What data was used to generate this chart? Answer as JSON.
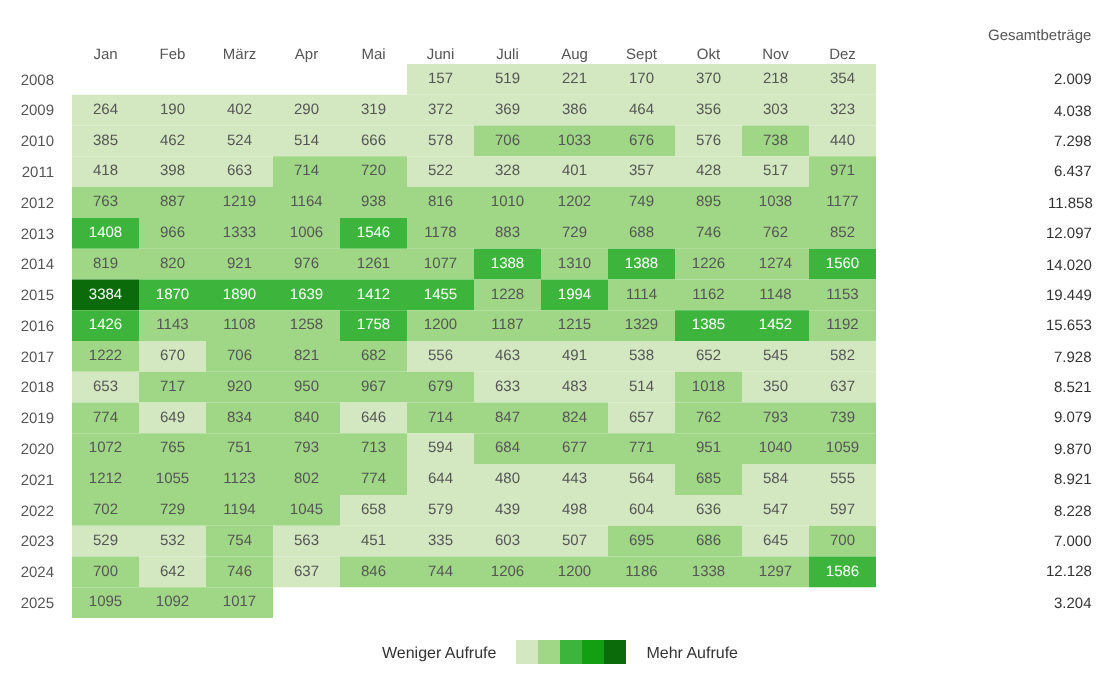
{
  "chart_data": {
    "type": "heatmap",
    "categories": [
      "Jan",
      "Feb",
      "März",
      "Apr",
      "Mai",
      "Juni",
      "Juli",
      "Aug",
      "Sept",
      "Okt",
      "Nov",
      "Dez"
    ],
    "y_categories": [
      "2008",
      "2009",
      "2010",
      "2011",
      "2012",
      "2013",
      "2014",
      "2015",
      "2016",
      "2017",
      "2018",
      "2019",
      "2020",
      "2021",
      "2022",
      "2023",
      "2024",
      "2025"
    ],
    "y2_categories": [
      "2.009",
      "4.038",
      "7.298",
      "6.437",
      "11.858",
      "12.097",
      "14.020",
      "19.449",
      "15.653",
      "7.928",
      "8.521",
      "9.079",
      "9.870",
      "8.921",
      "8.228",
      "7.000",
      "12.128",
      "3.204"
    ],
    "cells": [
      [
        null,
        null,
        null,
        null,
        null,
        157,
        519,
        221,
        170,
        370,
        218,
        354
      ],
      [
        264,
        190,
        402,
        290,
        319,
        372,
        369,
        386,
        464,
        356,
        303,
        323
      ],
      [
        385,
        462,
        524,
        514,
        666,
        578,
        706,
        1033,
        676,
        576,
        738,
        440
      ],
      [
        418,
        398,
        663,
        714,
        720,
        522,
        328,
        401,
        357,
        428,
        517,
        971
      ],
      [
        763,
        887,
        1219,
        1164,
        938,
        816,
        1010,
        1202,
        749,
        895,
        1038,
        1177
      ],
      [
        1408,
        966,
        1333,
        1006,
        1546,
        1178,
        883,
        729,
        688,
        746,
        762,
        852
      ],
      [
        819,
        820,
        921,
        976,
        1261,
        1077,
        1388,
        1310,
        1388,
        1226,
        1274,
        1560
      ],
      [
        3384,
        1870,
        1890,
        1639,
        1412,
        1455,
        1228,
        1994,
        1114,
        1162,
        1148,
        1153
      ],
      [
        1426,
        1143,
        1108,
        1258,
        1758,
        1200,
        1187,
        1215,
        1329,
        1385,
        1452,
        1192
      ],
      [
        1222,
        670,
        706,
        821,
        682,
        556,
        463,
        491,
        538,
        652,
        545,
        582
      ],
      [
        653,
        717,
        920,
        950,
        967,
        679,
        633,
        483,
        514,
        1018,
        350,
        637
      ],
      [
        774,
        649,
        834,
        840,
        646,
        714,
        847,
        824,
        657,
        762,
        793,
        739
      ],
      [
        1072,
        765,
        751,
        793,
        713,
        594,
        684,
        677,
        771,
        951,
        1040,
        1059
      ],
      [
        1212,
        1055,
        1123,
        802,
        774,
        644,
        480,
        443,
        564,
        685,
        584,
        555
      ],
      [
        702,
        729,
        1194,
        1045,
        658,
        579,
        439,
        498,
        604,
        636,
        547,
        597
      ],
      [
        529,
        532,
        754,
        563,
        451,
        335,
        603,
        507,
        695,
        686,
        645,
        700
      ],
      [
        700,
        642,
        746,
        637,
        846,
        744,
        1206,
        1200,
        1186,
        1338,
        1297,
        1586
      ],
      [
        1095,
        1092,
        1017,
        null,
        null,
        null,
        null,
        null,
        null,
        null,
        null,
        null
      ]
    ],
    "colors": [
      [
        null,
        null,
        null,
        null,
        null,
        "#d3e8c1",
        "#d3e8c1",
        "#d3e8c1",
        "#d3e8c1",
        "#d3e8c1",
        "#d3e8c1",
        "#d3e8c1"
      ],
      [
        "#d3e8c1",
        "#d3e8c1",
        "#d3e8c1",
        "#d3e8c1",
        "#d3e8c1",
        "#d3e8c1",
        "#d3e8c1",
        "#d3e8c1",
        "#d3e8c1",
        "#d3e8c1",
        "#d3e8c1",
        "#d3e8c1"
      ],
      [
        "#d3e8c1",
        "#d3e8c1",
        "#d3e8c1",
        "#d3e8c1",
        "#d3e8c1",
        "#d3e8c1",
        "#a0d786",
        "#a0d786",
        "#a0d786",
        "#d3e8c1",
        "#a0d786",
        "#d3e8c1"
      ],
      [
        "#d3e8c1",
        "#d3e8c1",
        "#d3e8c1",
        "#a0d786",
        "#a0d786",
        "#d3e8c1",
        "#d3e8c1",
        "#d3e8c1",
        "#d3e8c1",
        "#d3e8c1",
        "#d3e8c1",
        "#a0d786"
      ],
      [
        "#a0d786",
        "#a0d786",
        "#a0d786",
        "#a0d786",
        "#a0d786",
        "#a0d786",
        "#a0d786",
        "#a0d786",
        "#a0d786",
        "#a0d786",
        "#a0d786",
        "#a0d786"
      ],
      [
        "#3db53d",
        "#a0d786",
        "#a0d786",
        "#a0d786",
        "#3db53d",
        "#a0d786",
        "#a0d786",
        "#a0d786",
        "#a0d786",
        "#a0d786",
        "#a0d786",
        "#a0d786"
      ],
      [
        "#a0d786",
        "#a0d786",
        "#a0d786",
        "#a0d786",
        "#a0d786",
        "#a0d786",
        "#3db53d",
        "#a0d786",
        "#3db53d",
        "#a0d786",
        "#a0d786",
        "#3db53d"
      ],
      [
        "#0b6b0b",
        "#3db53d",
        "#3db53d",
        "#3db53d",
        "#3db53d",
        "#3db53d",
        "#a0d786",
        "#3db53d",
        "#a0d786",
        "#a0d786",
        "#a0d786",
        "#a0d786"
      ],
      [
        "#3db53d",
        "#a0d786",
        "#a0d786",
        "#a0d786",
        "#3db53d",
        "#a0d786",
        "#a0d786",
        "#a0d786",
        "#a0d786",
        "#3db53d",
        "#3db53d",
        "#a0d786"
      ],
      [
        "#a0d786",
        "#d3e8c1",
        "#a0d786",
        "#a0d786",
        "#a0d786",
        "#d3e8c1",
        "#d3e8c1",
        "#d3e8c1",
        "#d3e8c1",
        "#d3e8c1",
        "#d3e8c1",
        "#d3e8c1"
      ],
      [
        "#d3e8c1",
        "#a0d786",
        "#a0d786",
        "#a0d786",
        "#a0d786",
        "#a0d786",
        "#d3e8c1",
        "#d3e8c1",
        "#d3e8c1",
        "#a0d786",
        "#d3e8c1",
        "#d3e8c1"
      ],
      [
        "#a0d786",
        "#d3e8c1",
        "#a0d786",
        "#a0d786",
        "#d3e8c1",
        "#a0d786",
        "#a0d786",
        "#a0d786",
        "#d3e8c1",
        "#a0d786",
        "#a0d786",
        "#a0d786"
      ],
      [
        "#a0d786",
        "#a0d786",
        "#a0d786",
        "#a0d786",
        "#a0d786",
        "#d3e8c1",
        "#a0d786",
        "#a0d786",
        "#a0d786",
        "#a0d786",
        "#a0d786",
        "#a0d786"
      ],
      [
        "#a0d786",
        "#a0d786",
        "#a0d786",
        "#a0d786",
        "#a0d786",
        "#d3e8c1",
        "#d3e8c1",
        "#d3e8c1",
        "#d3e8c1",
        "#a0d786",
        "#d3e8c1",
        "#d3e8c1"
      ],
      [
        "#a0d786",
        "#a0d786",
        "#a0d786",
        "#a0d786",
        "#d3e8c1",
        "#d3e8c1",
        "#d3e8c1",
        "#d3e8c1",
        "#d3e8c1",
        "#d3e8c1",
        "#d3e8c1",
        "#d3e8c1"
      ],
      [
        "#d3e8c1",
        "#d3e8c1",
        "#a0d786",
        "#d3e8c1",
        "#d3e8c1",
        "#d3e8c1",
        "#d3e8c1",
        "#d3e8c1",
        "#a0d786",
        "#a0d786",
        "#d3e8c1",
        "#a0d786"
      ],
      [
        "#a0d786",
        "#d3e8c1",
        "#a0d786",
        "#d3e8c1",
        "#a0d786",
        "#a0d786",
        "#a0d786",
        "#a0d786",
        "#a0d786",
        "#a0d786",
        "#a0d786",
        "#3db53d"
      ],
      [
        "#a0d786",
        "#a0d786",
        "#a0d786",
        null,
        null,
        null,
        null,
        null,
        null,
        null,
        null,
        null
      ]
    ],
    "data_labels": true,
    "annotations": [
      "Weniger Aufrufe",
      "Mehr Aufrufe",
      "Gesamtbeträge"
    ]
  }
}
